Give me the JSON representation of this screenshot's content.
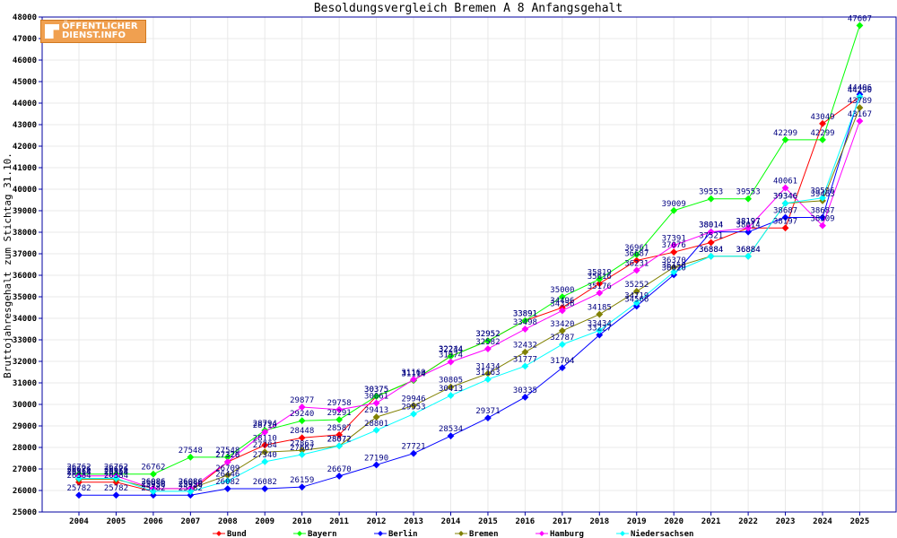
{
  "chart_data": {
    "type": "line",
    "title": "Besoldungsvergleich Bremen A 8 Anfangsgehalt",
    "xlabel": "",
    "ylabel": "Bruttojahresgehalt zum Stichtag 31.10.",
    "x": [
      "2004",
      "2005",
      "2006",
      "2007",
      "2008",
      "2009",
      "2010",
      "2011",
      "2012",
      "2013",
      "2014",
      "2015",
      "2016",
      "2017",
      "2018",
      "2019",
      "2020",
      "2021",
      "2022",
      "2023",
      "2024",
      "2025"
    ],
    "ylim": [
      25000,
      48000
    ],
    "yticks": [
      25000,
      26000,
      27000,
      28000,
      29000,
      30000,
      31000,
      32000,
      33000,
      34000,
      35000,
      36000,
      37000,
      38000,
      39000,
      40000,
      41000,
      42000,
      43000,
      44000,
      45000,
      46000,
      47000,
      48000
    ],
    "grid": true,
    "legend_position": "bottom",
    "series": [
      {
        "name": "Bund",
        "color": "#ff0000",
        "values": [
          26384,
          26384,
          25956,
          25956,
          27326,
          28110,
          28448,
          28587,
          30375,
          31114,
          32244,
          32952,
          33891,
          34496,
          35616,
          36687,
          37076,
          37521,
          38197,
          38197,
          43049,
          44290
        ]
      },
      {
        "name": "Bayern",
        "color": "#00ff00",
        "values": [
          26762,
          26762,
          26762,
          27548,
          27548,
          28794,
          29240,
          29291,
          30375,
          31114,
          32234,
          32952,
          33891,
          35000,
          35819,
          36961,
          39009,
          39553,
          39553,
          42299,
          42299,
          47607
        ]
      },
      {
        "name": "Berlin",
        "color": "#0000ff",
        "values": [
          25782,
          25782,
          25782,
          25782,
          26082,
          26082,
          26159,
          26670,
          27190,
          27721,
          28534,
          29371,
          30335,
          31704,
          33227,
          34566,
          36020,
          38014,
          38014,
          38687,
          38687,
          44406
        ]
      },
      {
        "name": "Bremen",
        "color": "#808000",
        "values": [
          26514,
          26514,
          26086,
          26086,
          26709,
          27784,
          27863,
          28072,
          29413,
          29946,
          30805,
          31434,
          32432,
          33420,
          34185,
          35252,
          36370,
          36884,
          36884,
          39346,
          39463,
          43789
        ]
      },
      {
        "name": "Hamburg",
        "color": "#ff00ff",
        "values": [
          26676,
          26676,
          26086,
          26086,
          27326,
          28710,
          29877,
          29758,
          30061,
          31160,
          31974,
          32582,
          33498,
          34356,
          35176,
          36231,
          37391,
          38014,
          38197,
          40061,
          38309,
          43167
        ]
      },
      {
        "name": "Niedersachsen",
        "color": "#00ffff",
        "values": [
          26564,
          26564,
          25956,
          25956,
          26446,
          27340,
          27667,
          28072,
          28801,
          29553,
          30413,
          31163,
          31777,
          32787,
          33434,
          34719,
          36150,
          36884,
          36884,
          39346,
          39596,
          44290
        ]
      }
    ]
  },
  "logo": {
    "line1": "ÖFFENTLICHER",
    "line2": "DIENST.INFO"
  }
}
